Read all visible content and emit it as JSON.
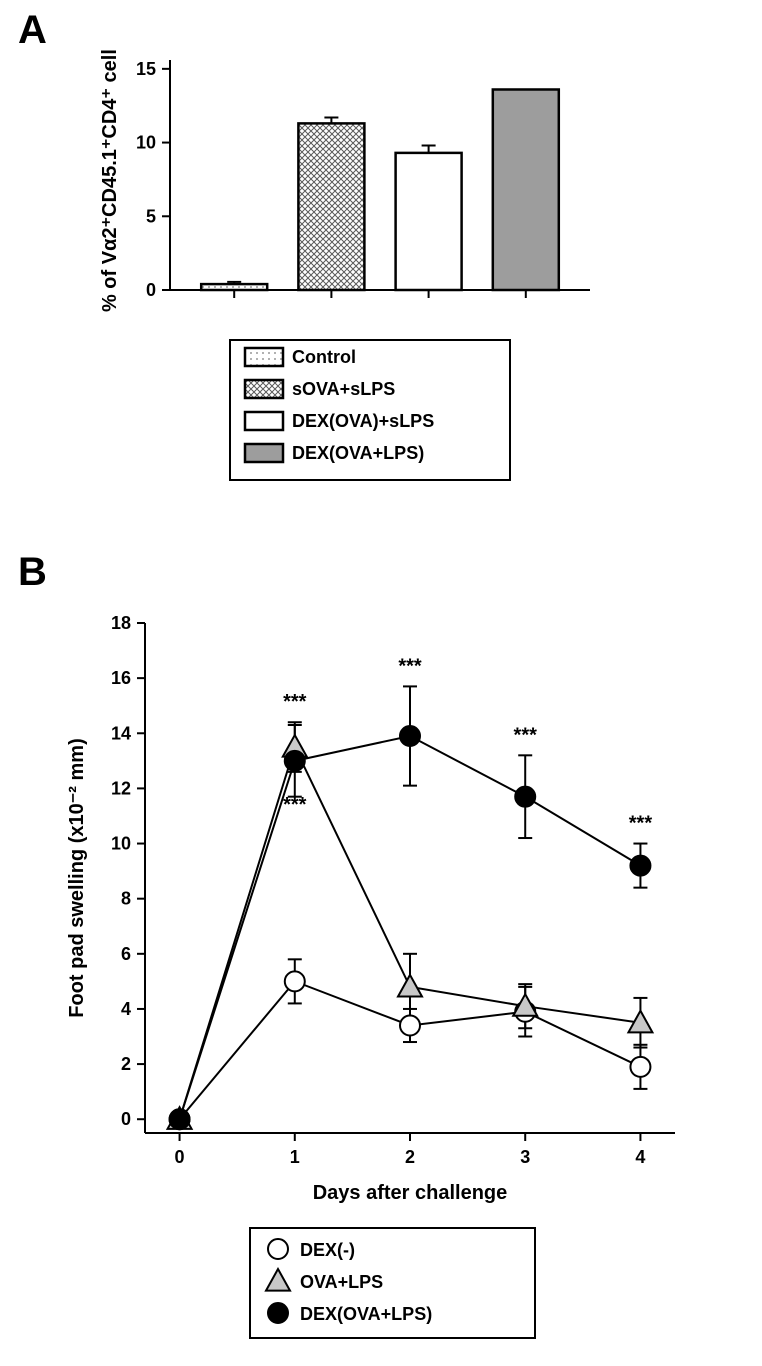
{
  "panelA": {
    "label": "A",
    "y_axis_title": "% of Vα2⁺CD45.1⁺CD4⁺ cells",
    "ylim": [
      0,
      15.6
    ],
    "yticks": [
      0,
      5,
      10,
      15
    ],
    "bars": [
      {
        "name": "Control",
        "value": 0.4,
        "err": 0.15,
        "fill": "#d0d0d0",
        "pattern": "dots"
      },
      {
        "name": "sOVA+sLPS",
        "value": 11.3,
        "err": 0.4,
        "fill": "#808080",
        "pattern": "cross"
      },
      {
        "name": "DEX(OVA)+sLPS",
        "value": 9.3,
        "err": 0.5,
        "fill": "#ffffff",
        "pattern": "none"
      },
      {
        "name": "DEX(OVA+LPS)",
        "value": 13.6,
        "err": 0,
        "fill": "#9d9d9d",
        "pattern": "none"
      }
    ],
    "legend_items": [
      {
        "label": "Control",
        "fill": "#d0d0d0",
        "pattern": "dots"
      },
      {
        "label": "sOVA+sLPS",
        "fill": "#808080",
        "pattern": "cross"
      },
      {
        "label": "DEX(OVA)+sLPS",
        "fill": "#ffffff",
        "pattern": "none"
      },
      {
        "label": "DEX(OVA+LPS)",
        "fill": "#9d9d9d",
        "pattern": "none"
      }
    ]
  },
  "panelB": {
    "label": "B",
    "y_axis_title": "Foot pad swelling (x10⁻² mm)",
    "x_axis_title": "Days after challenge",
    "xlim": [
      -0.3,
      4.3
    ],
    "ylim": [
      -0.5,
      18
    ],
    "xticks": [
      0,
      1,
      2,
      3,
      4
    ],
    "yticks": [
      0,
      2,
      4,
      6,
      8,
      10,
      12,
      14,
      16,
      18
    ],
    "series": [
      {
        "name": "DEX(-)",
        "marker": "circle",
        "fill": "#ffffff",
        "points": [
          {
            "x": 0,
            "y": 0,
            "err": 0
          },
          {
            "x": 1,
            "y": 5.0,
            "err": 0.8
          },
          {
            "x": 2,
            "y": 3.4,
            "err": 0.6
          },
          {
            "x": 3,
            "y": 3.9,
            "err": 0.9
          },
          {
            "x": 4,
            "y": 1.9,
            "err": 0.8
          }
        ]
      },
      {
        "name": "OVA+LPS",
        "marker": "triangle",
        "fill": "#c8c8c8",
        "points": [
          {
            "x": 0,
            "y": 0,
            "err": 0
          },
          {
            "x": 1,
            "y": 13.5,
            "err": 0.9,
            "sig": "***",
            "sig_pos": "top"
          },
          {
            "x": 2,
            "y": 4.8,
            "err": 1.2
          },
          {
            "x": 3,
            "y": 4.1,
            "err": 0.8
          },
          {
            "x": 4,
            "y": 3.5,
            "err": 0.9
          }
        ]
      },
      {
        "name": "DEX(OVA+LPS)",
        "marker": "circle",
        "fill": "#000000",
        "points": [
          {
            "x": 0,
            "y": 0,
            "err": 0
          },
          {
            "x": 1,
            "y": 13.0,
            "err": 1.3,
            "sig": "***",
            "sig_pos": "bottom"
          },
          {
            "x": 2,
            "y": 13.9,
            "err": 1.8,
            "sig": "***",
            "sig_pos": "top"
          },
          {
            "x": 3,
            "y": 11.7,
            "err": 1.5,
            "sig": "***",
            "sig_pos": "top"
          },
          {
            "x": 4,
            "y": 9.2,
            "err": 0.8,
            "sig": "***",
            "sig_pos": "top"
          }
        ]
      }
    ],
    "legend_items": [
      {
        "label": "DEX(-)",
        "marker": "circle",
        "fill": "#ffffff"
      },
      {
        "label": "OVA+LPS",
        "marker": "triangle",
        "fill": "#c8c8c8"
      },
      {
        "label": "DEX(OVA+LPS)",
        "marker": "circle",
        "fill": "#000000"
      }
    ]
  }
}
